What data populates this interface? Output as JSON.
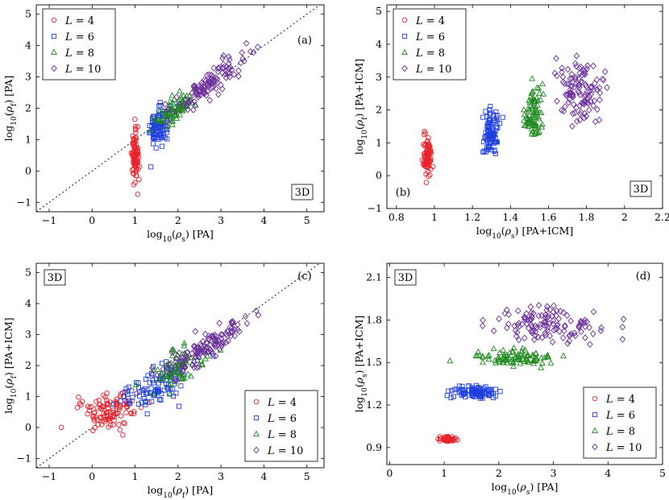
{
  "figure": {
    "panels_order": [
      "a",
      "b",
      "c",
      "d"
    ]
  },
  "series_styles": [
    {
      "name": "L = 4",
      "marker": "circle",
      "color": "#e8232a"
    },
    {
      "name": "L = 6",
      "marker": "square",
      "color": "#1f3fe0"
    },
    {
      "name": "L = 8",
      "marker": "triangle",
      "color": "#1f8a1f"
    },
    {
      "name": "L = 10",
      "marker": "diamond",
      "color": "#6a2c9a"
    }
  ],
  "legend_labels": [
    {
      "L": "L",
      "eq": " = 4"
    },
    {
      "L": "L",
      "eq": " = 6"
    },
    {
      "L": "L",
      "eq": " = 8"
    },
    {
      "L": "L",
      "eq": " = 10"
    }
  ],
  "chart_data": [
    {
      "id": "a",
      "type": "scatter",
      "tag": "(a)",
      "dim": "3D",
      "xlabel": "log10(ρs) [PA]",
      "ylabel": "log10(ρf) [PA]",
      "xlim": [
        -1.3,
        5.4
      ],
      "ylim": [
        -1.3,
        5.3
      ],
      "xticks": [
        -1,
        0,
        1,
        2,
        3,
        4,
        5
      ],
      "yticks": [
        -1,
        0,
        1,
        2,
        3,
        4,
        5
      ],
      "diagonal": true,
      "legend": "top-left",
      "dim_position": "bottom-right",
      "tag_position": "top-right",
      "series": [
        {
          "name": "L = 4",
          "clusters": [
            {
              "cx": 1.0,
              "cy": 0.4,
              "sx": 0.04,
              "sy": 0.42,
              "n": 90,
              "corr": 0
            }
          ]
        },
        {
          "name": "L = 6",
          "clusters": [
            {
              "cx": 1.55,
              "cy": 1.45,
              "sx": 0.12,
              "sy": 0.35,
              "n": 90,
              "corr": 0.3
            }
          ]
        },
        {
          "name": "L = 8",
          "clusters": [
            {
              "cx": 1.95,
              "cy": 1.95,
              "sx": 0.22,
              "sy": 0.25,
              "n": 80,
              "corr": 0.7
            }
          ]
        },
        {
          "name": "L = 10",
          "clusters": [
            {
              "cx": 2.7,
              "cy": 2.75,
              "sx": 0.42,
              "sy": 0.45,
              "n": 110,
              "corr": 0.85
            }
          ]
        }
      ]
    },
    {
      "id": "b",
      "type": "scatter",
      "tag": "(b)",
      "dim": "3D",
      "xlabel": "log10(ρs) [PA+ICM]",
      "ylabel": "log10(ρf) [PA+ICM]",
      "xlim": [
        0.75,
        2.2
      ],
      "ylim": [
        -1,
        5.2
      ],
      "xticks": [
        0.8,
        1,
        1.2,
        1.4,
        1.6,
        1.8,
        2,
        2.2
      ],
      "yticks": [
        -1,
        0,
        1,
        2,
        3,
        4,
        5
      ],
      "diagonal": false,
      "legend": "top-left",
      "dim_position": "bottom-right",
      "tag_position": "bottom-left",
      "series": [
        {
          "name": "L = 4",
          "clusters": [
            {
              "cx": 0.965,
              "cy": 0.55,
              "sx": 0.012,
              "sy": 0.32,
              "n": 90,
              "corr": 0
            }
          ]
        },
        {
          "name": "L = 6",
          "clusters": [
            {
              "cx": 1.3,
              "cy": 1.35,
              "sx": 0.02,
              "sy": 0.3,
              "n": 90,
              "corr": 0
            }
          ]
        },
        {
          "name": "L = 8",
          "clusters": [
            {
              "cx": 1.52,
              "cy": 1.95,
              "sx": 0.025,
              "sy": 0.4,
              "n": 85,
              "corr": 0
            }
          ]
        },
        {
          "name": "L = 10",
          "clusters": [
            {
              "cx": 1.76,
              "cy": 2.6,
              "sx": 0.06,
              "sy": 0.5,
              "n": 110,
              "corr": 0
            }
          ]
        }
      ]
    },
    {
      "id": "c",
      "type": "scatter",
      "tag": "(c)",
      "dim": "3D",
      "xlabel": "log10(ρf) [PA]",
      "ylabel": "log10(ρf) [PA+ICM]",
      "xlim": [
        -1.3,
        5.4
      ],
      "ylim": [
        -1.3,
        5.3
      ],
      "xticks": [
        -1,
        0,
        1,
        2,
        3,
        4,
        5
      ],
      "yticks": [
        -1,
        0,
        1,
        2,
        3,
        4,
        5
      ],
      "diagonal": true,
      "legend": "bottom-right",
      "dim_position": "top-left",
      "tag_position": "top-right",
      "series": [
        {
          "name": "L = 4",
          "clusters": [
            {
              "cx": 0.4,
              "cy": 0.55,
              "sx": 0.35,
              "sy": 0.3,
              "n": 110,
              "corr": 0.3
            }
          ]
        },
        {
          "name": "L = 6",
          "clusters": [
            {
              "cx": 1.5,
              "cy": 1.35,
              "sx": 0.4,
              "sy": 0.35,
              "n": 100,
              "corr": 0.6
            }
          ]
        },
        {
          "name": "L = 8",
          "clusters": [
            {
              "cx": 2.0,
              "cy": 1.95,
              "sx": 0.35,
              "sy": 0.35,
              "n": 80,
              "corr": 0.7
            }
          ]
        },
        {
          "name": "L = 10",
          "clusters": [
            {
              "cx": 2.7,
              "cy": 2.6,
              "sx": 0.5,
              "sy": 0.5,
              "n": 120,
              "corr": 0.85
            }
          ]
        }
      ]
    },
    {
      "id": "d",
      "type": "scatter",
      "tag": "(d)",
      "dim": "3D",
      "xlabel": "log10(ρs) [PA]",
      "ylabel": "log10(ρs) [PA+ICM]",
      "xlim": [
        -0.05,
        5.0
      ],
      "ylim": [
        0.78,
        2.2
      ],
      "xticks": [
        0,
        1,
        2,
        3,
        4,
        5
      ],
      "yticks": [
        0.9,
        1.2,
        1.5,
        1.8,
        2.1
      ],
      "diagonal": false,
      "legend": "bottom-right",
      "dim_position": "top-left",
      "tag_position": "top-right",
      "series": [
        {
          "name": "L = 4",
          "clusters": [
            {
              "cx": 1.05,
              "cy": 0.96,
              "sx": 0.08,
              "sy": 0.01,
              "n": 60,
              "corr": 0
            }
          ]
        },
        {
          "name": "L = 6",
          "clusters": [
            {
              "cx": 1.55,
              "cy": 1.29,
              "sx": 0.2,
              "sy": 0.02,
              "n": 100,
              "corr": 0
            }
          ]
        },
        {
          "name": "L = 8",
          "clusters": [
            {
              "cx": 2.3,
              "cy": 1.53,
              "sx": 0.35,
              "sy": 0.03,
              "n": 90,
              "corr": 0
            }
          ]
        },
        {
          "name": "L = 10",
          "clusters": [
            {
              "cx": 2.9,
              "cy": 1.76,
              "sx": 0.55,
              "sy": 0.06,
              "n": 120,
              "corr": 0
            }
          ]
        }
      ]
    }
  ]
}
